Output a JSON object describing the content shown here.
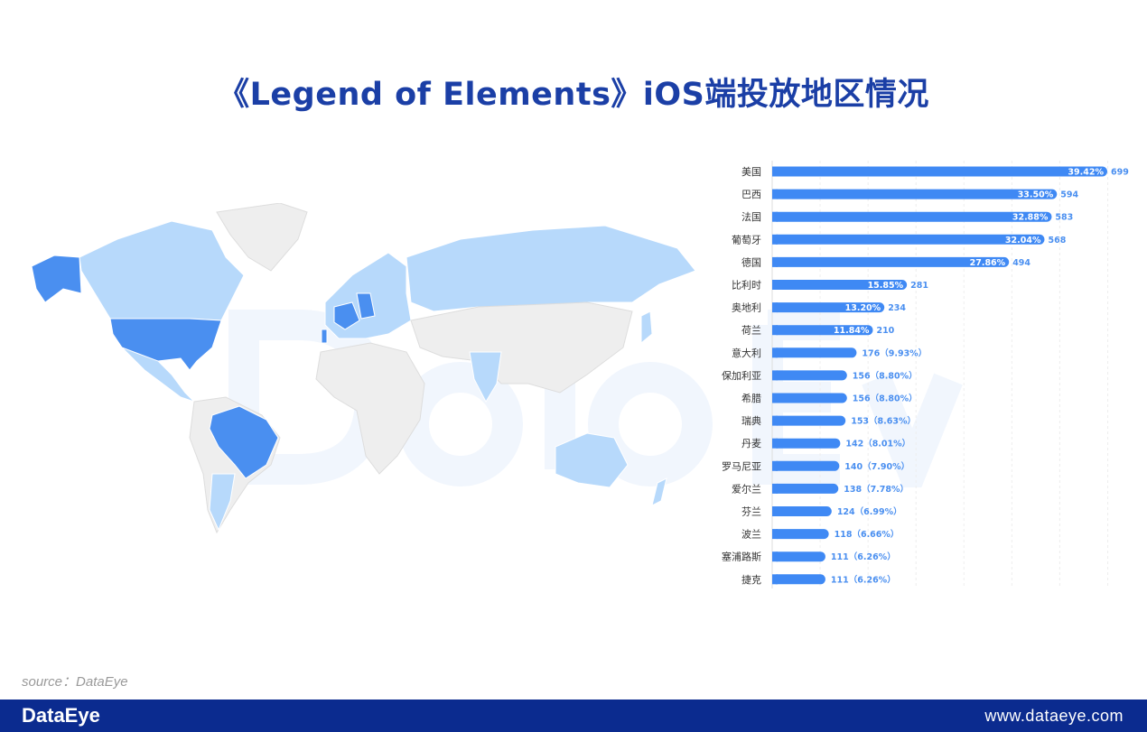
{
  "title": "《Legend of Elements》iOS端投放地区情况",
  "watermark": "DataEye",
  "source": "source：DataEye",
  "footer": {
    "logo": "DataEye",
    "url": "www.dataeye.com"
  },
  "colors": {
    "title": "#1b3fa6",
    "bar": "#3f89f4",
    "map_high": "#4a8ff0",
    "map_low": "#b7d9fb",
    "map_none": "#eeeeee",
    "footer": "#0b2b8f"
  },
  "chart_data": {
    "type": "bar",
    "orientation": "horizontal",
    "xlim": [
      0,
      700
    ],
    "grid": true,
    "categories": [
      "美国",
      "巴西",
      "法国",
      "葡萄牙",
      "德国",
      "比利时",
      "奥地利",
      "荷兰",
      "意大利",
      "保加利亚",
      "希腊",
      "瑞典",
      "丹麦",
      "罗马尼亚",
      "爱尔兰",
      "芬兰",
      "波兰",
      "塞浦路斯",
      "捷克"
    ],
    "values": [
      699,
      594,
      583,
      568,
      494,
      281,
      234,
      210,
      176,
      156,
      156,
      153,
      142,
      140,
      138,
      124,
      118,
      111,
      111
    ],
    "percents": [
      "39.42%",
      "33.50%",
      "32.88%",
      "32.04%",
      "27.86%",
      "15.85%",
      "13.20%",
      "11.84%",
      "9.93%",
      "8.80%",
      "8.80%",
      "8.63%",
      "8.01%",
      "7.90%",
      "7.78%",
      "6.99%",
      "6.66%",
      "6.26%",
      "6.26%"
    ]
  },
  "map": {
    "high_regions": [
      "美国",
      "巴西",
      "法国",
      "葡萄牙",
      "德国"
    ],
    "low_regions": [
      "加拿大",
      "俄罗斯",
      "澳大利亚",
      "墨西哥",
      "阿根廷",
      "印度",
      "日本"
    ]
  }
}
